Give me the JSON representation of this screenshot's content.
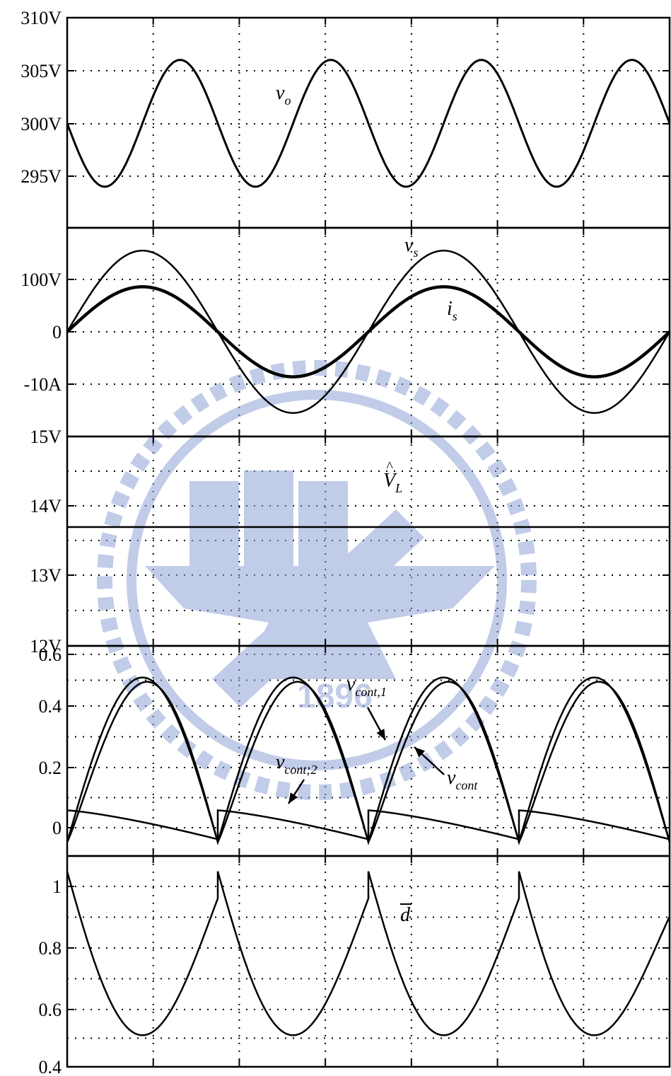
{
  "x_divisions": 7,
  "chart_data": [
    {
      "type": "line",
      "panel": "vo",
      "ylim": [
        290,
        310
      ],
      "yticks": [
        310,
        305,
        300,
        295
      ],
      "ytick_labels": [
        "310V",
        "305V",
        "300V",
        "295V"
      ],
      "series": [
        {
          "name": "v_o",
          "kind": "sine",
          "offset": 300,
          "amplitude": 6,
          "cycles": 4,
          "phase_deg": 180,
          "x": [
            0,
            0.5,
            1,
            1.5,
            2,
            2.5,
            3,
            3.5,
            4,
            4.5,
            5,
            5.5,
            6,
            6.5,
            7
          ],
          "y": [
            300,
            294,
            300,
            306,
            300,
            294,
            300,
            306,
            300,
            294,
            300,
            306,
            300,
            294,
            300
          ]
        }
      ],
      "labels": [
        {
          "series": "v_o",
          "base": "v",
          "sub": "o"
        }
      ]
    },
    {
      "type": "line",
      "panel": "vs-is",
      "ylim": [
        -20,
        20
      ],
      "yticks": [
        10,
        0,
        -10
      ],
      "ytick_labels": [
        "100V",
        "0",
        "-10A"
      ],
      "series": [
        {
          "name": "v_s",
          "kind": "sine",
          "offset": 0,
          "amplitude": 15.5,
          "cycles": 2,
          "phase_deg": 0,
          "x": [
            0,
            1.75,
            3.5,
            5.25,
            7
          ],
          "y": [
            0,
            15.5,
            0,
            -15.5,
            0
          ]
        },
        {
          "name": "i_s",
          "kind": "sine",
          "offset": 0,
          "amplitude": 8.6,
          "cycles": 2,
          "phase_deg": 0,
          "x": [
            0,
            1.75,
            3.5,
            5.25,
            7
          ],
          "y": [
            0,
            8.6,
            0,
            -8.6,
            0
          ]
        }
      ],
      "labels": [
        {
          "series": "v_s",
          "base": "v",
          "sub": "s"
        },
        {
          "series": "i_s",
          "base": "i",
          "sub": "s"
        }
      ]
    },
    {
      "type": "line",
      "panel": "VL",
      "ylim": [
        12,
        15
      ],
      "yticks": [
        15,
        14,
        13,
        12
      ],
      "ytick_labels": [
        "15V",
        "14V",
        "13V",
        "12V"
      ],
      "series": [
        {
          "name": "V_L_hat",
          "kind": "constant",
          "value": 13.7,
          "x": [
            0,
            7
          ],
          "y": [
            13.7,
            13.7
          ]
        }
      ],
      "labels": [
        {
          "series": "V_L_hat",
          "base": "V",
          "sub": "L",
          "hat": true
        }
      ]
    },
    {
      "type": "line",
      "panel": "vcont",
      "ylim": [
        -0.1,
        0.6
      ],
      "yticks": [
        0.6,
        0.4,
        0.2,
        0
      ],
      "ytick_labels": [
        "0.6",
        "0.4",
        "0.2",
        "0"
      ],
      "series": [
        {
          "name": "v_cont",
          "kind": "rectified_arc",
          "base": -0.05,
          "peak": 0.52,
          "peak_pos": 0.5
        },
        {
          "name": "v_cont,1",
          "kind": "rectified_arc",
          "base": -0.05,
          "peak": 0.505,
          "peak_pos": 0.53
        },
        {
          "name": "v_cont,2",
          "kind": "decay",
          "start": 0.06,
          "end": -0.04
        }
      ],
      "labels": [
        {
          "series": "v_cont,1",
          "base": "v",
          "sub": "cont,1"
        },
        {
          "series": "v_cont",
          "base": "v",
          "sub": "cont"
        },
        {
          "series": "v_cont,2",
          "base": "v",
          "sub": "cont;2"
        }
      ]
    },
    {
      "type": "line",
      "panel": "d",
      "ylim": [
        0.4,
        1.1
      ],
      "yticks": [
        1,
        0.8,
        0.6,
        0.4
      ],
      "ytick_labels": [
        "1",
        "0.8",
        "0.6",
        "0.4"
      ],
      "series": [
        {
          "name": "d_bar",
          "kind": "rectified_valley",
          "top": 1.05,
          "bottom": 0.505,
          "end_level": 0.96
        }
      ],
      "labels": [
        {
          "series": "d_bar",
          "base": "d",
          "overbar": true
        }
      ]
    }
  ]
}
